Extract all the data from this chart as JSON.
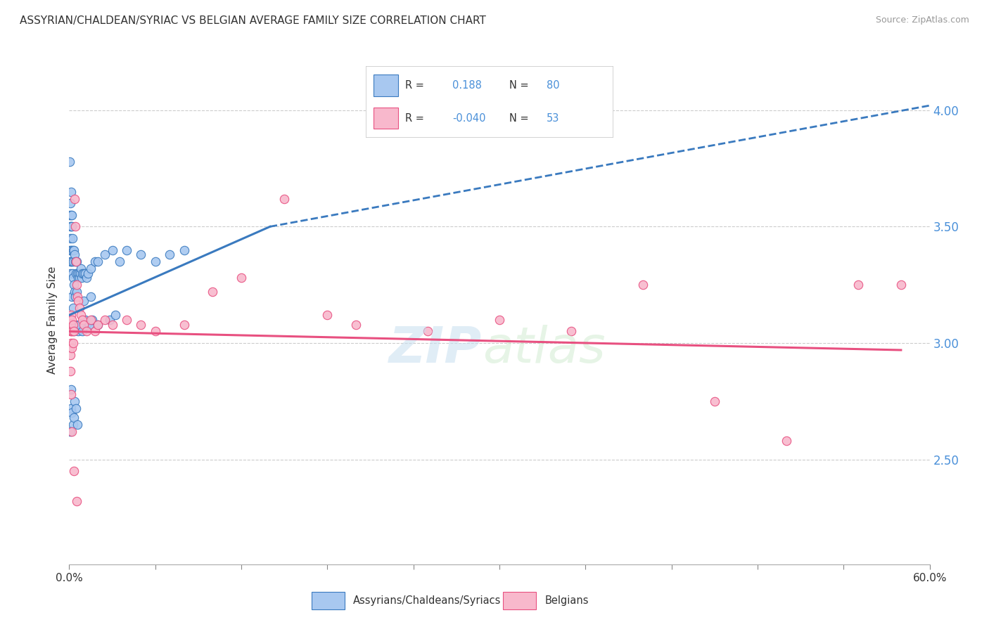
{
  "title": "ASSYRIAN/CHALDEAN/SYRIAC VS BELGIAN AVERAGE FAMILY SIZE CORRELATION CHART",
  "source": "Source: ZipAtlas.com",
  "ylabel": "Average Family Size",
  "right_yticks": [
    2.5,
    3.0,
    3.5,
    4.0
  ],
  "xmin": 0.0,
  "xmax": 60.0,
  "ymin": 2.05,
  "ymax": 4.15,
  "legend_label_blue": "Assyrians/Chaldeans/Syriacs",
  "legend_label_pink": "Belgians",
  "blue_color": "#a8c8f0",
  "pink_color": "#f8b8cc",
  "blue_line_color": "#3a7abf",
  "pink_line_color": "#e85080",
  "title_color": "#333333",
  "right_axis_color": "#4a90d9",
  "blue_R": "0.188",
  "pink_R": "-0.040",
  "blue_N": "80",
  "pink_N": "53",
  "scatter_blue_x": [
    0.05,
    0.05,
    0.05,
    0.08,
    0.08,
    0.1,
    0.1,
    0.1,
    0.12,
    0.12,
    0.15,
    0.15,
    0.15,
    0.18,
    0.18,
    0.2,
    0.2,
    0.2,
    0.22,
    0.22,
    0.25,
    0.25,
    0.25,
    0.28,
    0.3,
    0.3,
    0.35,
    0.35,
    0.4,
    0.4,
    0.45,
    0.5,
    0.5,
    0.55,
    0.6,
    0.65,
    0.7,
    0.75,
    0.8,
    0.85,
    0.9,
    1.0,
    1.0,
    1.1,
    1.2,
    1.3,
    1.5,
    1.5,
    1.8,
    2.0,
    2.5,
    3.0,
    3.5,
    4.0,
    5.0,
    6.0,
    7.0,
    8.0,
    1.0,
    1.2,
    0.3,
    0.4,
    0.6,
    0.7,
    0.9,
    1.1,
    1.4,
    1.6,
    2.0,
    2.8,
    3.2,
    0.15,
    0.12,
    0.2,
    0.25,
    0.08,
    0.35,
    0.3,
    0.45,
    0.55
  ],
  "scatter_blue_y": [
    3.78,
    3.55,
    3.4,
    3.5,
    3.35,
    3.6,
    3.45,
    3.3,
    3.55,
    3.4,
    3.65,
    3.5,
    3.35,
    3.55,
    3.4,
    3.5,
    3.35,
    3.2,
    3.45,
    3.3,
    3.4,
    3.28,
    3.15,
    3.35,
    3.4,
    3.25,
    3.38,
    3.22,
    3.35,
    3.2,
    3.3,
    3.35,
    3.22,
    3.3,
    3.28,
    3.3,
    3.28,
    3.3,
    3.32,
    3.28,
    3.3,
    3.3,
    3.18,
    3.3,
    3.28,
    3.3,
    3.32,
    3.2,
    3.35,
    3.35,
    3.38,
    3.4,
    3.35,
    3.4,
    3.38,
    3.35,
    3.38,
    3.4,
    3.1,
    3.08,
    3.05,
    3.08,
    3.05,
    3.08,
    3.05,
    3.1,
    3.08,
    3.1,
    3.08,
    3.1,
    3.12,
    2.8,
    2.72,
    2.7,
    2.65,
    2.62,
    2.75,
    2.68,
    2.72,
    2.65
  ],
  "scatter_pink_x": [
    0.05,
    0.05,
    0.08,
    0.1,
    0.1,
    0.12,
    0.15,
    0.15,
    0.18,
    0.2,
    0.2,
    0.22,
    0.25,
    0.28,
    0.3,
    0.35,
    0.4,
    0.45,
    0.5,
    0.55,
    0.6,
    0.7,
    0.8,
    0.9,
    1.0,
    1.2,
    1.5,
    1.8,
    2.0,
    2.5,
    3.0,
    4.0,
    5.0,
    6.0,
    8.0,
    10.0,
    12.0,
    15.0,
    18.0,
    20.0,
    25.0,
    30.0,
    35.0,
    40.0,
    45.0,
    50.0,
    55.0,
    58.0,
    0.08,
    0.12,
    0.18,
    0.3,
    0.5
  ],
  "scatter_pink_y": [
    3.1,
    2.98,
    3.05,
    3.08,
    2.95,
    3.05,
    3.12,
    3.0,
    3.05,
    3.1,
    2.98,
    3.05,
    3.08,
    3.0,
    3.05,
    3.62,
    3.5,
    3.35,
    3.25,
    3.2,
    3.18,
    3.15,
    3.12,
    3.1,
    3.08,
    3.05,
    3.1,
    3.05,
    3.08,
    3.1,
    3.08,
    3.1,
    3.08,
    3.05,
    3.08,
    3.22,
    3.28,
    3.62,
    3.12,
    3.08,
    3.05,
    3.1,
    3.05,
    3.25,
    2.75,
    2.58,
    3.25,
    3.25,
    2.88,
    2.78,
    2.62,
    2.45,
    2.32
  ],
  "blue_reg_start_x": 0.0,
  "blue_reg_end_solid_x": 14.0,
  "blue_reg_start_y": 3.12,
  "blue_reg_end_solid_y": 3.5,
  "blue_reg_end_dash_x": 60.0,
  "blue_reg_end_dash_y": 4.02,
  "pink_reg_start_x": 0.0,
  "pink_reg_end_x": 58.0,
  "pink_reg_start_y": 3.05,
  "pink_reg_end_y": 2.97
}
